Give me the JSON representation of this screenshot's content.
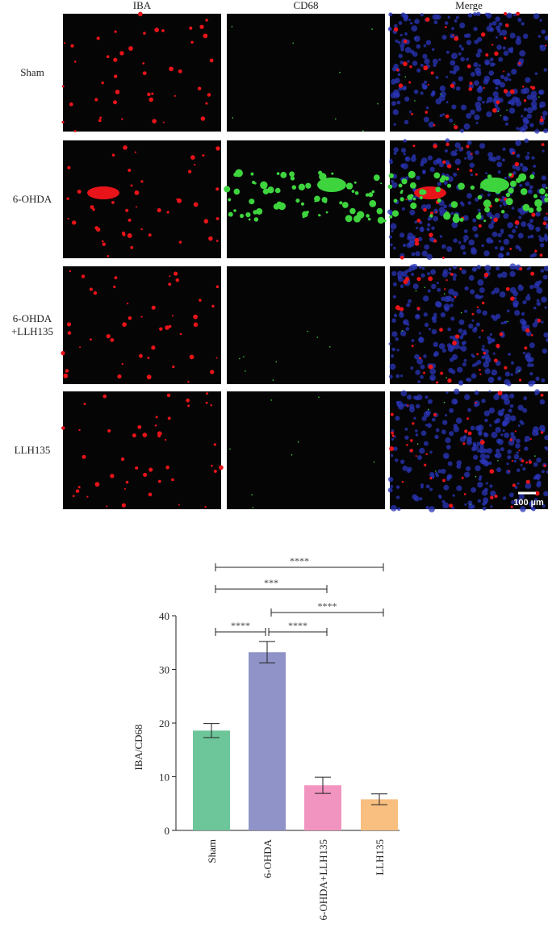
{
  "panels": {
    "columns": [
      "IBA",
      "CD68",
      "Merge"
    ],
    "rows": [
      "Sham",
      "6-OHDA",
      "6-OHDA +LLH135",
      "LLH135"
    ],
    "scale_bar": "100 µm"
  },
  "chart_data": {
    "type": "bar",
    "y_label": "IBA/CD68",
    "categories": [
      "Sham",
      "6-OHDA",
      "6-OHDA+LLH135",
      "LLH135"
    ],
    "values": [
      18.6,
      33.2,
      8.4,
      5.8
    ],
    "errors": [
      1.3,
      2.0,
      1.5,
      1.0
    ],
    "colors": [
      "#6dc69a",
      "#8f93c8",
      "#f294c0",
      "#f8bf80"
    ],
    "ylim": [
      0,
      40
    ],
    "yticks": [
      0,
      10,
      20,
      30,
      40
    ],
    "annotations": [
      {
        "label": "****",
        "from": "Sham",
        "to": "LLH135"
      },
      {
        "label": "***",
        "from": "Sham",
        "to": "6-OHDA+LLH135"
      },
      {
        "label": "****",
        "from": "6-OHDA",
        "to": "LLH135"
      },
      {
        "label": "****",
        "from": "Sham",
        "to": "6-OHDA"
      },
      {
        "label": "****",
        "from": "6-OHDA",
        "to": "6-OHDA+LLH135"
      }
    ]
  }
}
